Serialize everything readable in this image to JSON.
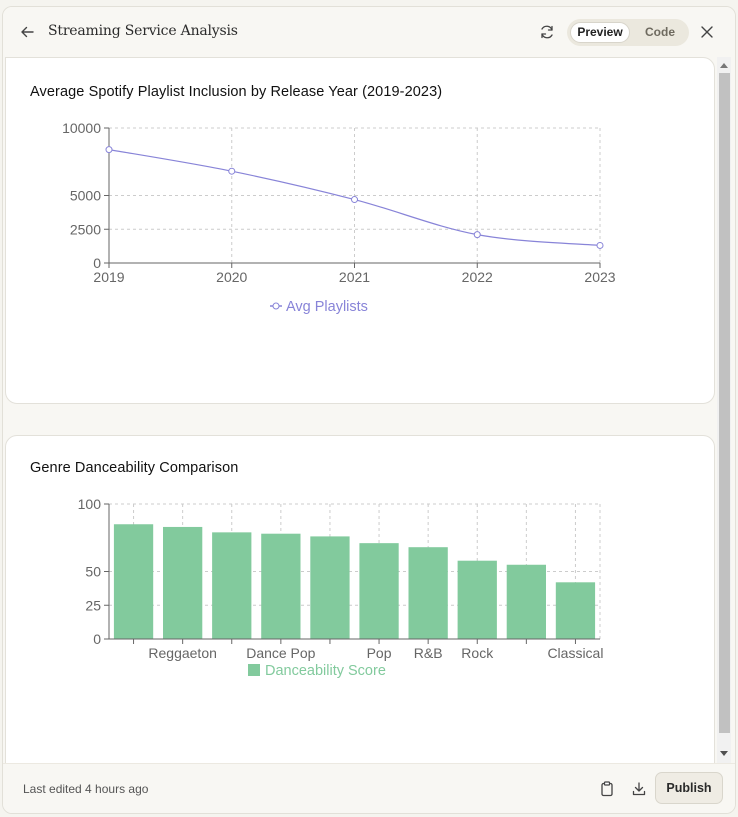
{
  "header": {
    "title": "Streaming Service Analysis",
    "preview_label": "Preview",
    "code_label": "Code"
  },
  "footer": {
    "last_edited": "Last edited 4 hours ago",
    "publish_label": "Publish"
  },
  "icons": [
    "back-arrow-icon",
    "refresh-icon",
    "close-icon",
    "clipboard-icon",
    "download-icon"
  ],
  "colors": {
    "line_series": "#8884d8",
    "bar_series": "#82ca9d",
    "background": "#f8f7f3"
  },
  "chart_data": [
    {
      "type": "line",
      "title": "Average Spotify Playlist Inclusion by Release Year (2019-2023)",
      "x": [
        "2019",
        "2020",
        "2021",
        "2022",
        "2023"
      ],
      "series": [
        {
          "name": "Avg Playlists",
          "values": [
            8400,
            6800,
            4700,
            2100,
            1300
          ]
        }
      ],
      "yticks": [
        "0",
        "2500",
        "5000",
        "10000"
      ],
      "ylim": [
        0,
        10000
      ],
      "grid": true,
      "legend": "bottom"
    },
    {
      "type": "bar",
      "title": "Genre Danceability Comparison",
      "categories": [
        "",
        "Reggaeton",
        "",
        "Dance Pop",
        "",
        "Pop",
        "R&B",
        "Rock",
        "",
        "Classical"
      ],
      "series": [
        {
          "name": "Danceability Score",
          "values": [
            85,
            83,
            79,
            78,
            76,
            71,
            68,
            58,
            55,
            42
          ]
        }
      ],
      "yticks": [
        "0",
        "25",
        "50",
        "100"
      ],
      "ylim": [
        0,
        100
      ],
      "grid": true,
      "legend": "bottom"
    }
  ]
}
